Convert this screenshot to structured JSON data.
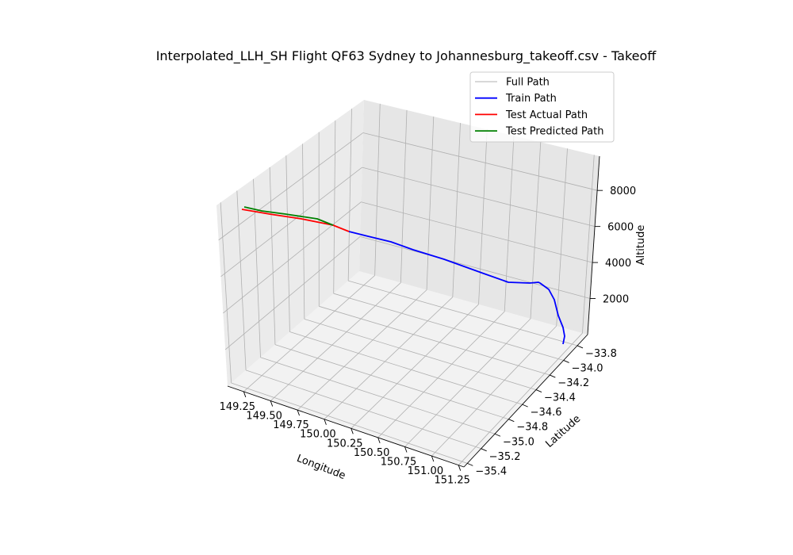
{
  "chart_data": {
    "type": "line3d",
    "title": "Interpolated_LLH_SH Flight QF63 Sydney to Johannesburg_takeoff.csv - Takeoff",
    "xlabel": "Longitude",
    "ylabel": "Latitude",
    "zlabel": "Altitude",
    "xlim": [
      149.1,
      151.3
    ],
    "ylim": [
      -35.45,
      -33.65
    ],
    "zlim": [
      0,
      9900
    ],
    "x_ticks": [
      "149.25",
      "149.50",
      "149.75",
      "150.00",
      "150.25",
      "150.50",
      "150.75",
      "151.00",
      "151.25"
    ],
    "y_ticks": [
      "−33.8",
      "−34.0",
      "−34.2",
      "−34.4",
      "−34.6",
      "−34.8",
      "−35.0",
      "−35.2",
      "−35.4"
    ],
    "z_ticks": [
      "2000",
      "4000",
      "6000",
      "8000"
    ],
    "grid": true,
    "legend_position": "top-right",
    "series": [
      {
        "name": "Full Path",
        "color": "#d3d3d3"
      },
      {
        "name": "Train Path",
        "color": "#0000ff"
      },
      {
        "name": "Test Actual Path",
        "color": "#ff0000"
      },
      {
        "name": "Test Predicted Path",
        "color": "#008000"
      }
    ]
  }
}
